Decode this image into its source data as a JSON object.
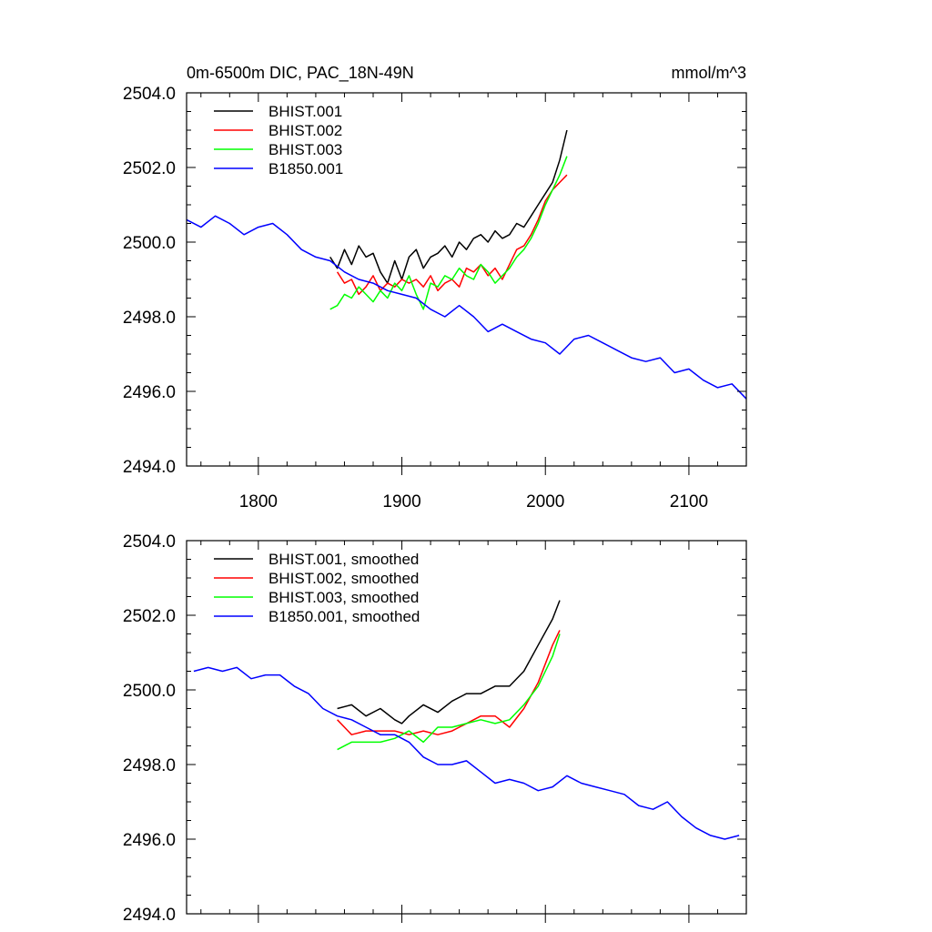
{
  "chart_data": [
    {
      "type": "line",
      "title": "0m-6500m DIC, PAC_18N-49N",
      "units": "mmol/m^3",
      "xlim": [
        1750,
        2140
      ],
      "ylim": [
        2494.0,
        2504.0
      ],
      "xticks": [
        1800,
        1900,
        2000,
        2100
      ],
      "xtick_labels": [
        "1800",
        "1900",
        "2000",
        "2100"
      ],
      "yticks": [
        2494.0,
        2496.0,
        2498.0,
        2500.0,
        2502.0,
        2504.0
      ],
      "ytick_labels": [
        "2494.0",
        "2496.0",
        "2498.0",
        "2500.0",
        "2502.0",
        "2504.0"
      ],
      "legend_position": "top-left",
      "series": [
        {
          "name": "BHIST.001",
          "color": "#000000",
          "x": [
            1850,
            1855,
            1860,
            1865,
            1870,
            1875,
            1880,
            1885,
            1890,
            1895,
            1900,
            1905,
            1910,
            1915,
            1920,
            1925,
            1930,
            1935,
            1940,
            1945,
            1950,
            1955,
            1960,
            1965,
            1970,
            1975,
            1980,
            1985,
            1990,
            1995,
            2000,
            2005,
            2010,
            2015
          ],
          "y": [
            2499.6,
            2499.3,
            2499.8,
            2499.4,
            2499.9,
            2499.6,
            2499.7,
            2499.2,
            2498.9,
            2499.5,
            2499.0,
            2499.6,
            2499.8,
            2499.3,
            2499.6,
            2499.7,
            2499.9,
            2499.6,
            2500.0,
            2499.8,
            2500.1,
            2500.2,
            2500.0,
            2500.3,
            2500.1,
            2500.2,
            2500.5,
            2500.4,
            2500.7,
            2501.0,
            2501.3,
            2501.6,
            2502.2,
            2503.0
          ]
        },
        {
          "name": "BHIST.002",
          "color": "#ff0000",
          "x": [
            1855,
            1860,
            1865,
            1870,
            1875,
            1880,
            1885,
            1890,
            1895,
            1900,
            1905,
            1910,
            1915,
            1920,
            1925,
            1930,
            1935,
            1940,
            1945,
            1950,
            1955,
            1960,
            1965,
            1970,
            1975,
            1980,
            1985,
            1990,
            1995,
            2000,
            2005,
            2010,
            2015
          ],
          "y": [
            2499.2,
            2498.9,
            2499.0,
            2498.6,
            2498.8,
            2499.1,
            2498.7,
            2498.9,
            2498.8,
            2499.0,
            2498.9,
            2499.0,
            2498.8,
            2499.1,
            2498.7,
            2498.9,
            2499.0,
            2498.8,
            2499.3,
            2499.2,
            2499.4,
            2499.1,
            2499.3,
            2499.0,
            2499.4,
            2499.8,
            2499.9,
            2500.2,
            2500.6,
            2501.1,
            2501.4,
            2501.6,
            2501.8
          ]
        },
        {
          "name": "BHIST.003",
          "color": "#00ff00",
          "x": [
            1850,
            1855,
            1860,
            1865,
            1870,
            1875,
            1880,
            1885,
            1890,
            1895,
            1900,
            1905,
            1910,
            1915,
            1920,
            1925,
            1930,
            1935,
            1940,
            1945,
            1950,
            1955,
            1960,
            1965,
            1970,
            1975,
            1980,
            1985,
            1990,
            1995,
            2000,
            2005,
            2010,
            2015
          ],
          "y": [
            2498.2,
            2498.3,
            2498.6,
            2498.5,
            2498.8,
            2498.6,
            2498.4,
            2498.7,
            2498.5,
            2498.9,
            2498.7,
            2499.1,
            2498.6,
            2498.2,
            2498.9,
            2498.8,
            2499.1,
            2499.0,
            2499.3,
            2499.1,
            2499.0,
            2499.4,
            2499.2,
            2498.9,
            2499.1,
            2499.3,
            2499.6,
            2499.8,
            2500.1,
            2500.5,
            2501.0,
            2501.4,
            2501.8,
            2502.3
          ]
        },
        {
          "name": "B1850.001",
          "color": "#0000ff",
          "x": [
            1750,
            1760,
            1770,
            1780,
            1790,
            1800,
            1810,
            1820,
            1830,
            1840,
            1850,
            1860,
            1870,
            1880,
            1890,
            1900,
            1910,
            1920,
            1930,
            1940,
            1950,
            1960,
            1970,
            1980,
            1990,
            2000,
            2010,
            2020,
            2030,
            2040,
            2050,
            2060,
            2070,
            2080,
            2090,
            2100,
            2110,
            2120,
            2130,
            2140
          ],
          "y": [
            2500.6,
            2500.4,
            2500.7,
            2500.5,
            2500.2,
            2500.4,
            2500.5,
            2500.2,
            2499.8,
            2499.6,
            2499.5,
            2499.2,
            2499.0,
            2498.9,
            2498.7,
            2498.6,
            2498.5,
            2498.2,
            2498.0,
            2498.3,
            2498.0,
            2497.6,
            2497.8,
            2497.6,
            2497.4,
            2497.3,
            2497.0,
            2497.4,
            2497.5,
            2497.3,
            2497.1,
            2496.9,
            2496.8,
            2496.9,
            2496.5,
            2496.6,
            2496.3,
            2496.1,
            2496.2,
            2495.8
          ]
        }
      ]
    },
    {
      "type": "line",
      "title": "",
      "xlim": [
        1750,
        2140
      ],
      "ylim": [
        2494.0,
        2504.0
      ],
      "xticks": [
        1800,
        1900,
        2000,
        2100
      ],
      "yticks": [
        2494.0,
        2496.0,
        2498.0,
        2500.0,
        2502.0,
        2504.0
      ],
      "ytick_labels": [
        "2494.0",
        "2496.0",
        "2498.0",
        "2500.0",
        "2502.0",
        "2504.0"
      ],
      "legend_position": "top-left",
      "series": [
        {
          "name": "BHIST.001, smoothed",
          "color": "#000000",
          "x": [
            1855,
            1865,
            1875,
            1885,
            1895,
            1900,
            1905,
            1915,
            1925,
            1935,
            1945,
            1955,
            1965,
            1975,
            1985,
            1995,
            2005,
            2010
          ],
          "y": [
            2499.5,
            2499.6,
            2499.3,
            2499.5,
            2499.2,
            2499.1,
            2499.3,
            2499.6,
            2499.4,
            2499.7,
            2499.9,
            2499.9,
            2500.1,
            2500.1,
            2500.5,
            2501.2,
            2501.9,
            2502.4
          ]
        },
        {
          "name": "BHIST.002, smoothed",
          "color": "#ff0000",
          "x": [
            1855,
            1865,
            1875,
            1885,
            1895,
            1905,
            1915,
            1925,
            1935,
            1945,
            1955,
            1965,
            1975,
            1985,
            1995,
            2005,
            2010
          ],
          "y": [
            2499.2,
            2498.8,
            2498.9,
            2498.9,
            2498.9,
            2498.8,
            2498.9,
            2498.8,
            2498.9,
            2499.1,
            2499.3,
            2499.3,
            2499.0,
            2499.5,
            2500.2,
            2501.2,
            2501.6
          ]
        },
        {
          "name": "BHIST.003, smoothed",
          "color": "#00ff00",
          "x": [
            1855,
            1865,
            1875,
            1885,
            1895,
            1905,
            1915,
            1925,
            1935,
            1945,
            1955,
            1965,
            1975,
            1985,
            1995,
            2005,
            2010
          ],
          "y": [
            2498.4,
            2498.6,
            2498.6,
            2498.6,
            2498.7,
            2498.9,
            2498.6,
            2499.0,
            2499.0,
            2499.1,
            2499.2,
            2499.1,
            2499.2,
            2499.6,
            2500.1,
            2500.9,
            2501.5
          ]
        },
        {
          "name": "B1850.001, smoothed",
          "color": "#0000ff",
          "x": [
            1755,
            1765,
            1775,
            1785,
            1795,
            1805,
            1815,
            1825,
            1835,
            1845,
            1855,
            1865,
            1875,
            1885,
            1895,
            1905,
            1915,
            1925,
            1935,
            1945,
            1955,
            1965,
            1975,
            1985,
            1995,
            2005,
            2015,
            2025,
            2035,
            2045,
            2055,
            2065,
            2075,
            2085,
            2095,
            2105,
            2115,
            2125,
            2135
          ],
          "y": [
            2500.5,
            2500.6,
            2500.5,
            2500.6,
            2500.3,
            2500.4,
            2500.4,
            2500.1,
            2499.9,
            2499.5,
            2499.3,
            2499.2,
            2499.0,
            2498.8,
            2498.8,
            2498.6,
            2498.2,
            2498.0,
            2498.0,
            2498.1,
            2497.8,
            2497.5,
            2497.6,
            2497.5,
            2497.3,
            2497.4,
            2497.7,
            2497.5,
            2497.4,
            2497.3,
            2497.2,
            2496.9,
            2496.8,
            2497.0,
            2496.6,
            2496.3,
            2496.1,
            2496.0,
            2496.1
          ]
        }
      ]
    }
  ]
}
